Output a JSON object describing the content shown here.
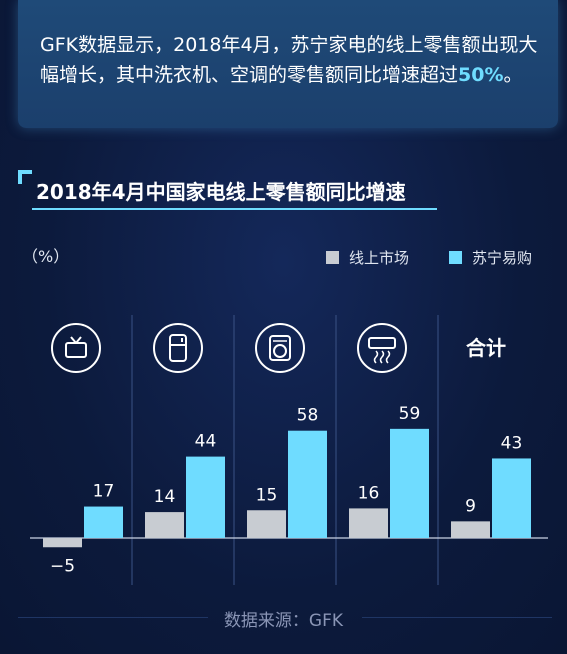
{
  "intro": {
    "text_before": "GFK数据显示，2018年4月，苏宁家电的线上零售额出现大幅增长，其中洗衣机、空调的零售额同比增速超过",
    "highlight": "50%",
    "text_after": "。"
  },
  "source": "数据来源：GFK",
  "colors": {
    "market": "#c8ccd2",
    "suning": "#6fdcff",
    "accent": "#6fdcff"
  },
  "chart_data": {
    "type": "bar",
    "title": "2018年4月中国家电线上零售额同比增速",
    "ylabel": "（%）",
    "categories": [
      "tv-icon",
      "fridge-icon",
      "washer-icon",
      "aircon-icon",
      "合计"
    ],
    "series": [
      {
        "name": "线上市场",
        "values": [
          -5,
          14,
          15,
          16,
          9
        ]
      },
      {
        "name": "苏宁易购",
        "values": [
          17,
          44,
          58,
          59,
          43
        ]
      }
    ],
    "data_labels": [
      [
        "−5",
        "14",
        "15",
        "16",
        "9"
      ],
      [
        "17",
        "44",
        "58",
        "59",
        "43"
      ]
    ],
    "ylim": [
      -10,
      100
    ],
    "grid": false,
    "legend": "top-right"
  }
}
